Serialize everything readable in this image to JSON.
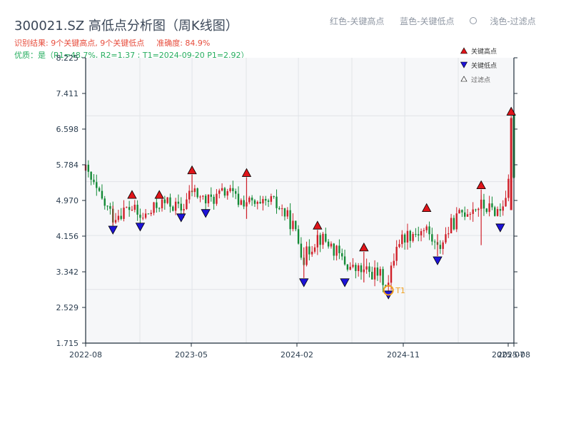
{
  "title": "300021.SZ 高低点分析图（周K线图）",
  "summary": {
    "result": "识别结果: 9个关键高点, 9个关键低点",
    "accuracy": "准确度: 84.9%",
    "quality": "优质：是（R1=48.7%, R2=1.37 ; T1=2024-09-20 P1=2.92）"
  },
  "top_legend": {
    "red": "红色-关键高点",
    "blue": "蓝色-关键低点",
    "light": "浅色-过滤点"
  },
  "colors": {
    "up": "#d0202a",
    "down": "#138a36",
    "high_marker": "#e0151a",
    "low_marker": "#1d13d8",
    "t1_ring": "#f0a020",
    "plot_bg": "#f6f7f9",
    "axis": "#1f2d3a"
  },
  "chart_data": {
    "type": "candlestick",
    "ylim": [
      1.715,
      8.225
    ],
    "yticks": [
      1.715,
      2.529,
      3.342,
      4.156,
      4.97,
      5.784,
      6.598,
      7.411,
      8.225
    ],
    "ytick_labels": [
      "1.715",
      "2.529",
      "3.342",
      "4.156",
      "4.970",
      "5.784",
      "6.598",
      "7.411",
      "8.225"
    ],
    "xtick_labels": [
      "2022-08",
      "2023-05",
      "2024-02",
      "2024-11",
      "2025-07",
      "2025-08"
    ],
    "x_start": "2022-08-05",
    "x_end": "2025-08-08",
    "key_highs": [
      {
        "date": "2022-12-02",
        "price": 5.0
      },
      {
        "date": "2023-02-10",
        "price": 5.0
      },
      {
        "date": "2023-05-05",
        "price": 5.56
      },
      {
        "date": "2023-09-22",
        "price": 5.5
      },
      {
        "date": "2024-03-22",
        "price": 4.3
      },
      {
        "date": "2024-07-19",
        "price": 3.8
      },
      {
        "date": "2024-12-27",
        "price": 4.7
      },
      {
        "date": "2025-05-16",
        "price": 5.22
      },
      {
        "date": "2025-08-01",
        "price": 6.9
      }
    ],
    "key_lows": [
      {
        "date": "2022-10-14",
        "price": 4.4
      },
      {
        "date": "2022-12-23",
        "price": 4.47
      },
      {
        "date": "2023-04-07",
        "price": 4.68
      },
      {
        "date": "2023-06-09",
        "price": 4.78
      },
      {
        "date": "2024-02-16",
        "price": 3.2
      },
      {
        "date": "2024-05-31",
        "price": 3.2
      },
      {
        "date": "2024-09-20",
        "price": 2.92
      },
      {
        "date": "2025-01-24",
        "price": 3.7
      },
      {
        "date": "2025-07-04",
        "price": 4.45
      }
    ],
    "t1": {
      "date": "2024-09-20",
      "price": 2.92,
      "label": "T1"
    },
    "legend": [
      "关键高点",
      "关键低点",
      "过滤点"
    ]
  }
}
